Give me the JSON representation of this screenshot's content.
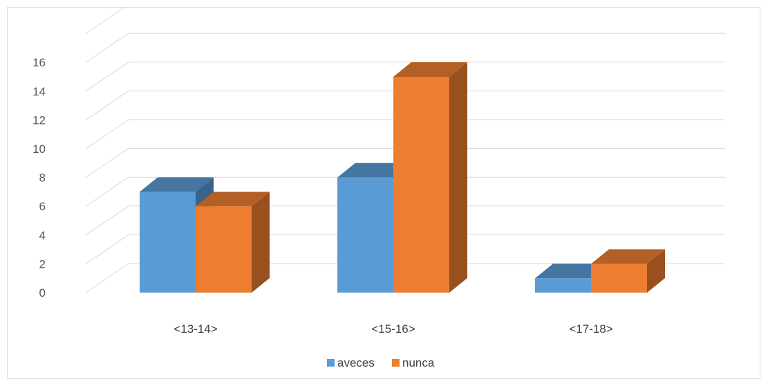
{
  "chart_data": {
    "type": "bar",
    "title": "",
    "xlabel": "",
    "ylabel": "",
    "categories": [
      "<13-14>",
      "<15-16>",
      "<17-18>"
    ],
    "series": [
      {
        "name": "aveces",
        "values": [
          7,
          8,
          1
        ],
        "color": "#5b9bd5"
      },
      {
        "name": "nunca",
        "values": [
          6,
          15,
          2
        ],
        "color": "#ed7d31"
      }
    ],
    "ylim": [
      0,
      16
    ],
    "yticks": [
      0,
      2,
      4,
      6,
      8,
      10,
      12,
      14,
      16
    ],
    "grid": true,
    "style": "3d-clustered-column",
    "legend": "bottom-center"
  }
}
